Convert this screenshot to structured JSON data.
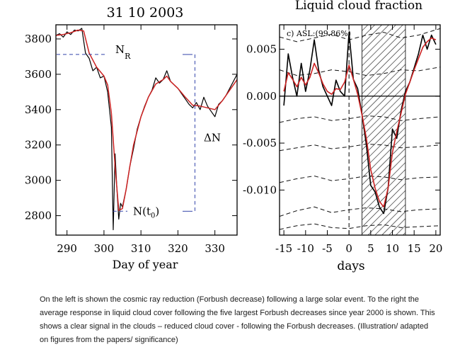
{
  "caption": "On the left is shown the cosmic ray reduction (Forbush decrease) following a large solar event. To the right the average response in liquid cloud cover following the five largest Forbush decreases since year 2000 is shown. This shows a clear signal in the clouds – reduced cloud cover - following the Forbush decreases. (Illustration/ adapted on figures from the papers/ significance)",
  "chart_data": [
    {
      "type": "line",
      "title": "31 10 2003",
      "xlabel": "Day of year",
      "ylabel": "",
      "xlim": [
        287,
        336
      ],
      "ylim": [
        2690,
        3880
      ],
      "xticks": [
        290,
        300,
        310,
        320,
        330
      ],
      "yticks": [
        2800,
        3000,
        3200,
        3400,
        3600,
        3800
      ],
      "annotations": {
        "n_r": "N",
        "n_r_sub": "R",
        "n_r_level": 3712,
        "n_t0": "N(t",
        "n_t0_sub": "0",
        "n_t0_close": ")",
        "n_t0_level": 2825,
        "delta_n": "ΔN",
        "delta_n_day": 324.6
      },
      "series": [
        {
          "color": "#000000",
          "x": [
            287,
            288,
            289,
            290,
            291,
            292,
            293,
            294,
            295,
            296,
            297,
            298,
            299,
            300,
            301,
            302,
            302.5,
            303,
            303.5,
            304,
            304.5,
            305,
            306,
            307,
            308,
            309,
            310,
            311,
            312,
            313,
            314,
            315,
            316,
            317,
            318,
            319,
            320,
            321,
            322,
            323,
            324,
            325,
            326,
            327,
            328,
            329,
            330,
            331,
            332,
            333,
            334,
            335,
            336
          ],
          "y": [
            3820,
            3830,
            3810,
            3840,
            3825,
            3850,
            3845,
            3860,
            3720,
            3690,
            3620,
            3640,
            3580,
            3590,
            3500,
            3300,
            2720,
            3150,
            2950,
            2780,
            2870,
            2850,
            2950,
            3080,
            3180,
            3290,
            3360,
            3420,
            3470,
            3510,
            3580,
            3550,
            3570,
            3620,
            3560,
            3540,
            3520,
            3490,
            3460,
            3430,
            3410,
            3440,
            3400,
            3470,
            3420,
            3390,
            3360,
            3430,
            3450,
            3480,
            3520,
            3560,
            3600
          ]
        },
        {
          "color": "#cc2222",
          "x": [
            287,
            289,
            291,
            293,
            294.5,
            296,
            298,
            300,
            301,
            302,
            303,
            304,
            305,
            306,
            307,
            308,
            310,
            312,
            314,
            316,
            317,
            318,
            320,
            322,
            324,
            326,
            328,
            330,
            332,
            334,
            336
          ],
          "y": [
            3820,
            3825,
            3835,
            3850,
            3845,
            3720,
            3640,
            3590,
            3540,
            3380,
            3080,
            2830,
            2840,
            2950,
            3080,
            3200,
            3360,
            3470,
            3545,
            3570,
            3590,
            3560,
            3520,
            3470,
            3425,
            3420,
            3410,
            3400,
            3450,
            3510,
            3570
          ]
        }
      ]
    },
    {
      "type": "line",
      "title": "Liquid cloud fraction",
      "xlabel": "days",
      "ylabel": "",
      "panel_label": "c)  ASL:(99.86%)",
      "xlim": [
        -16,
        21
      ],
      "ylim": [
        -0.0148,
        0.0076
      ],
      "xticks": [
        -15,
        -10,
        -5,
        0,
        5,
        10,
        15,
        20
      ],
      "yticks": [
        0.005,
        0.0,
        -0.005,
        -0.01
      ],
      "ytick_labels": [
        "0.005",
        "0.000",
        "-0.005",
        "-0.010"
      ],
      "hatched_span": [
        3,
        13
      ],
      "series": [
        {
          "color": "#000000",
          "x": [
            -15,
            -14,
            -13,
            -12,
            -11,
            -10,
            -9,
            -8,
            -7,
            -6,
            -5,
            -4,
            -3,
            -2,
            -1,
            0,
            1,
            2,
            3,
            4,
            5,
            6,
            7,
            8,
            9,
            10,
            11,
            12,
            13,
            14,
            15,
            16,
            17,
            18,
            19,
            20
          ],
          "y": [
            -0.001,
            0.0045,
            0.002,
            0.0,
            0.0035,
            0.0005,
            0.0028,
            0.006,
            0.0028,
            0.001,
            0.0,
            -0.001,
            0.0017,
            0.0005,
            0.0,
            0.0068,
            0.0018,
            0.0008,
            -0.002,
            -0.0052,
            -0.0095,
            -0.0102,
            -0.0118,
            -0.0125,
            -0.0098,
            -0.0035,
            -0.0045,
            -0.0015,
            0.0005,
            0.0015,
            0.003,
            0.0045,
            0.0065,
            0.005,
            0.0065,
            0.0055
          ]
        },
        {
          "color": "#cc2222",
          "x": [
            -15,
            -14,
            -13,
            -12,
            -11,
            -10,
            -9,
            -8,
            -7,
            -6,
            -5,
            -4,
            -3,
            -2,
            -1,
            0,
            1,
            2,
            3,
            4,
            5,
            6,
            7,
            8,
            9,
            10,
            11,
            12,
            13,
            14,
            15,
            16,
            17,
            18,
            19,
            20
          ],
          "y": [
            0.0005,
            0.0025,
            0.0018,
            0.001,
            0.002,
            0.0012,
            0.002,
            0.0035,
            0.0025,
            0.0013,
            0.0005,
            0.0002,
            0.0008,
            0.0007,
            0.0015,
            0.0033,
            0.0018,
            0.0002,
            -0.002,
            -0.0045,
            -0.0078,
            -0.0098,
            -0.0112,
            -0.0118,
            -0.0098,
            -0.006,
            -0.0038,
            -0.0018,
            0.0002,
            0.0015,
            0.0028,
            0.004,
            0.0052,
            0.0058,
            0.0062,
            0.006
          ]
        }
      ],
      "confidence_bands": [
        {
          "x": [
            -16,
            -12,
            -8,
            -4,
            0,
            4,
            8,
            12,
            16,
            21
          ],
          "y": [
            0.0063,
            0.0058,
            0.0062,
            0.0066,
            0.006,
            0.0065,
            0.0068,
            0.0062,
            0.0065,
            0.0072
          ]
        },
        {
          "x": [
            -16,
            -12,
            -8,
            -4,
            0,
            4,
            8,
            12,
            16,
            21
          ],
          "y": [
            0.0028,
            0.0022,
            0.0024,
            0.0028,
            0.0026,
            0.0022,
            0.0024,
            0.0028,
            0.0027,
            0.0031
          ]
        },
        {
          "x": [
            -16,
            -12,
            -8,
            -4,
            0,
            4,
            8,
            12,
            16,
            21
          ],
          "y": [
            -0.0028,
            -0.0024,
            -0.0022,
            -0.0026,
            -0.0024,
            -0.0021,
            -0.0022,
            -0.0026,
            -0.0024,
            -0.0022
          ]
        },
        {
          "x": [
            -16,
            -12,
            -8,
            -4,
            0,
            4,
            8,
            12,
            16,
            21
          ],
          "y": [
            -0.0058,
            -0.0055,
            -0.0052,
            -0.0056,
            -0.0054,
            -0.0051,
            -0.0052,
            -0.0055,
            -0.0054,
            -0.0052
          ]
        },
        {
          "x": [
            -16,
            -12,
            -8,
            -4,
            0,
            4,
            8,
            12,
            16,
            21
          ],
          "y": [
            -0.0092,
            -0.0088,
            -0.0085,
            -0.009,
            -0.0088,
            -0.0085,
            -0.0086,
            -0.0089,
            -0.0087,
            -0.0086
          ]
        },
        {
          "x": [
            -16,
            -12,
            -8,
            -4,
            0,
            4,
            8,
            12,
            16,
            21
          ],
          "y": [
            -0.0128,
            -0.0122,
            -0.0118,
            -0.0124,
            -0.0121,
            -0.0119,
            -0.012,
            -0.0123,
            -0.0121,
            -0.012
          ]
        },
        {
          "x": [
            -16,
            -12,
            -8,
            -4,
            0,
            4,
            8,
            12,
            16,
            21
          ],
          "y": [
            -0.0142,
            -0.0138,
            -0.0136,
            -0.014,
            -0.0141,
            -0.0138,
            -0.0137,
            -0.014,
            -0.0139,
            -0.0138
          ]
        }
      ]
    }
  ]
}
